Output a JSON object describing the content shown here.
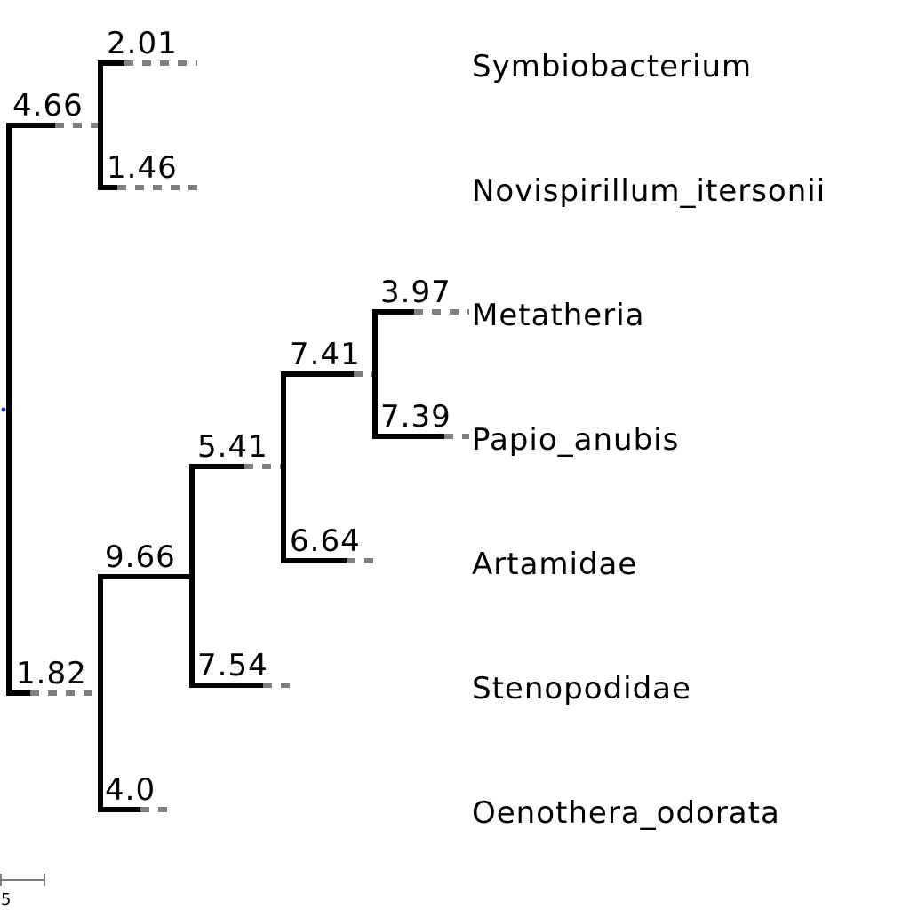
{
  "tree": {
    "leaves": [
      {
        "id": "symbio",
        "name": "Symbiobacterium"
      },
      {
        "id": "novi",
        "name": "Novispirillum_itersonii"
      },
      {
        "id": "meta",
        "name": "Metatheria"
      },
      {
        "id": "papio",
        "name": "Papio_anubis"
      },
      {
        "id": "arta",
        "name": "Artamidae"
      },
      {
        "id": "steno",
        "name": "Stenopodidae"
      },
      {
        "id": "oeno",
        "name": "Oenothera_odorata"
      }
    ],
    "branch_lengths": {
      "symbio": "2.01",
      "novi": "1.46",
      "clade_sn": "4.66",
      "meta": "3.97",
      "papio": "7.39",
      "clade_mp": "7.41",
      "arta": "6.64",
      "clade_mpa": "5.41",
      "steno": "7.54",
      "clade_mpas": "9.66",
      "oeno": "4.0",
      "clade_mpaso": "1.82"
    },
    "scale_bar": {
      "label": "5",
      "value": 5
    },
    "colors": {
      "branch": "#000000",
      "extension": "#808080",
      "root_marker": "#1f3fbf"
    }
  }
}
